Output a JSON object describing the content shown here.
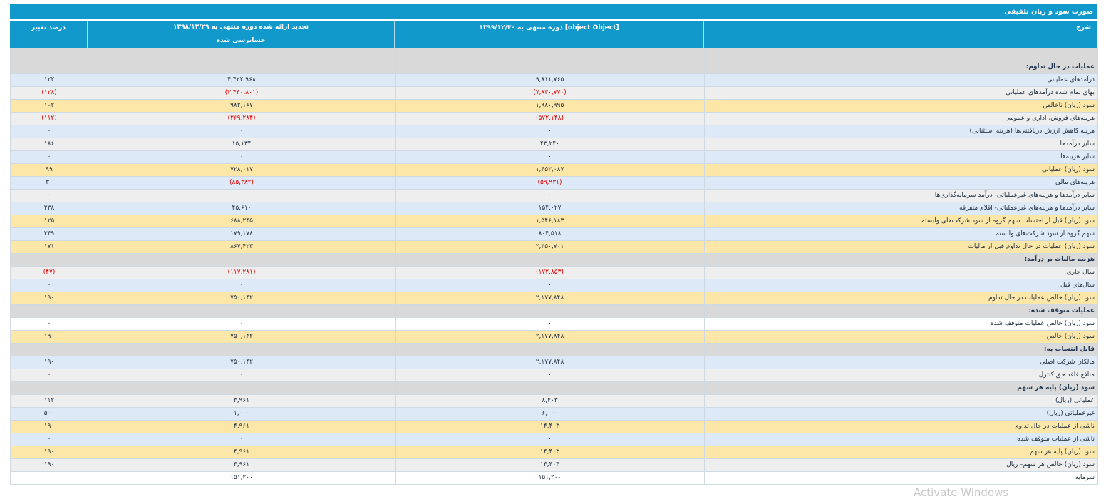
{
  "title": "صورت سود و زیان تلفیقی",
  "headers": {
    "desc": "شرح",
    "current": "دوره منتهی به ۱۳۹۹/۱۲/۳۰ [object Object]",
    "prior": "تجدید ارائه شده دوره منتهی به ۱۳۹۸/۱۲/۲۹",
    "prior_sub": "حسابرسی شده",
    "change": "درصد تغییر"
  },
  "colors": {
    "header_bg": "#1199cc",
    "negative": "#e00000"
  },
  "rows": [
    {
      "kind": "section",
      "desc": "",
      "current": "",
      "prior": "",
      "change": ""
    },
    {
      "kind": "section",
      "desc": "عملیات در حال تداوم:",
      "current": "",
      "prior": "",
      "change": ""
    },
    {
      "kind": "blue",
      "desc": "درآمدهای عملیاتی",
      "current": "۹,۸۱۱,۷۶۵",
      "prior": "۴,۴۲۲,۹۶۸",
      "change": "۱۲۲"
    },
    {
      "kind": "gray",
      "desc": "بهای تمام شده درآمدهای عملیاتی",
      "current": "(۷,۸۳۰,۷۷۰)",
      "prior": "(۳,۴۴۰,۸۰۱)",
      "change": "(۱۲۸)",
      "neg": true
    },
    {
      "kind": "yellow",
      "desc": "سود (زیان) ناخالص",
      "current": "۱,۹۸۰,۹۹۵",
      "prior": "۹۸۲,۱۶۷",
      "change": "۱۰۲"
    },
    {
      "kind": "gray",
      "desc": "هزینه‌های فروش، اداری و عمومی",
      "current": "(۵۷۲,۱۴۸)",
      "prior": "(۲۶۹,۲۸۴)",
      "change": "(۱۱۲)",
      "neg": true
    },
    {
      "kind": "blue",
      "desc": "هزینه کاهش ارزش دریافتنی‌ها (هزینه استثنایی)",
      "current": "۰",
      "prior": "۰",
      "change": "۰"
    },
    {
      "kind": "gray",
      "desc": "سایر درآمدها",
      "current": "۴۳,۲۴۰",
      "prior": "۱۵,۱۳۴",
      "change": "۱۸۶"
    },
    {
      "kind": "blue",
      "desc": "سایر هزینه‌ها",
      "current": "۰",
      "prior": "۰",
      "change": "۰"
    },
    {
      "kind": "yellow",
      "desc": "سود (زیان) عملیاتی",
      "current": "۱,۴۵۲,۰۸۷",
      "prior": "۷۲۸,۰۱۷",
      "change": "۹۹"
    },
    {
      "kind": "blue",
      "desc": "هزینه‌های مالی",
      "current": "(۵۹,۹۳۱)",
      "prior": "(۸۵,۳۸۲)",
      "change": "۳۰",
      "negcols": [
        "current",
        "prior"
      ]
    },
    {
      "kind": "gray",
      "desc": "سایر درآمدها و هزینه‌های غیرعملیاتی- درآمد سرمایه‌گذاری‌ها",
      "current": "۰",
      "prior": "۰",
      "change": "۰"
    },
    {
      "kind": "blue",
      "desc": "سایر درآمدها و هزینه‌های غیرعملیاتی- اقلام متفرقه",
      "current": "۱۵۴,۰۲۷",
      "prior": "۴۵,۶۱۰",
      "change": "۲۳۸"
    },
    {
      "kind": "yellow",
      "desc": "سود (زیان) قبل از احتساب سهم گروه از سود شرکت‌های وابسته",
      "current": "۱,۵۴۶,۱۸۳",
      "prior": "۶۸۸,۲۴۵",
      "change": "۱۲۵"
    },
    {
      "kind": "blue",
      "desc": "سهم گروه از سود شرکت‌های وابسته",
      "current": "۸۰۴,۵۱۸",
      "prior": "۱۷۹,۱۷۸",
      "change": "۳۴۹"
    },
    {
      "kind": "yellow",
      "desc": "سود (زیان) عملیات در حال تداوم قبل از مالیات",
      "current": "۲,۳۵۰,۷۰۱",
      "prior": "۸۶۷,۴۲۳",
      "change": "۱۷۱"
    },
    {
      "kind": "section",
      "desc": "هزینه مالیات بر درآمد:",
      "current": "",
      "prior": "",
      "change": ""
    },
    {
      "kind": "gray",
      "desc": "سال جاری",
      "current": "(۱۷۲,۸۵۳)",
      "prior": "(۱۱۷,۲۸۱)",
      "change": "(۴۷)",
      "neg": true
    },
    {
      "kind": "blue",
      "desc": "سال‌های قبل",
      "current": "۰",
      "prior": "۰",
      "change": "۰"
    },
    {
      "kind": "yellow",
      "desc": "سود (زیان) خالص عملیات در حال تداوم",
      "current": "۲,۱۷۷,۸۴۸",
      "prior": "۷۵۰,۱۴۲",
      "change": "۱۹۰"
    },
    {
      "kind": "section",
      "desc": "عملیات متوقف شده:",
      "current": "",
      "prior": "",
      "change": ""
    },
    {
      "kind": "white",
      "desc": "سود (زیان) خالص عملیات متوقف شده",
      "current": "۰",
      "prior": "۰",
      "change": "۰"
    },
    {
      "kind": "yellow",
      "desc": "سود (زیان) خالص",
      "current": "۲,۱۷۷,۸۴۸",
      "prior": "۷۵۰,۱۴۲",
      "change": "۱۹۰"
    },
    {
      "kind": "section",
      "desc": "قابل انتساب به:",
      "current": "",
      "prior": "",
      "change": ""
    },
    {
      "kind": "blue",
      "desc": "مالکان شرکت اصلی",
      "current": "۲,۱۷۷,۸۴۸",
      "prior": "۷۵۰,۱۴۲",
      "change": "۱۹۰"
    },
    {
      "kind": "gray",
      "desc": "منافع فاقد حق کنترل",
      "current": "۰",
      "prior": "۰",
      "change": "۰"
    },
    {
      "kind": "section",
      "desc": "سود (زیان) پایه هر سهم",
      "current": "",
      "prior": "",
      "change": ""
    },
    {
      "kind": "gray",
      "desc": "عملیاتی (ریال)",
      "current": "۸,۴۰۳",
      "prior": "۳,۹۶۱",
      "change": "۱۱۲"
    },
    {
      "kind": "blue",
      "desc": "غیرعملیاتی (ریال)",
      "current": "۶,۰۰۰",
      "prior": "۱,۰۰۰",
      "change": "۵۰۰"
    },
    {
      "kind": "yellow",
      "desc": "ناشی از عملیات در حال تداوم",
      "current": "۱۴,۴۰۳",
      "prior": "۴,۹۶۱",
      "change": "۱۹۰"
    },
    {
      "kind": "blue",
      "desc": "ناشی از عملیات متوقف شده",
      "current": "۰",
      "prior": "۰",
      "change": "۰"
    },
    {
      "kind": "yellow",
      "desc": "سود (زیان) پایه هر سهم",
      "current": "۱۴,۴۰۳",
      "prior": "۴,۹۶۱",
      "change": "۱۹۰"
    },
    {
      "kind": "gray",
      "desc": "سود (زیان) خالص هر سهم– ریال",
      "current": "۱۴,۴۰۴",
      "prior": "۴,۹۶۱",
      "change": "۱۹۰"
    },
    {
      "kind": "white",
      "desc": "سرمایه",
      "current": "۱۵۱,۲۰۰",
      "prior": "۱۵۱,۲۰۰",
      "change": ""
    }
  ],
  "watermark": "Activate Windows"
}
